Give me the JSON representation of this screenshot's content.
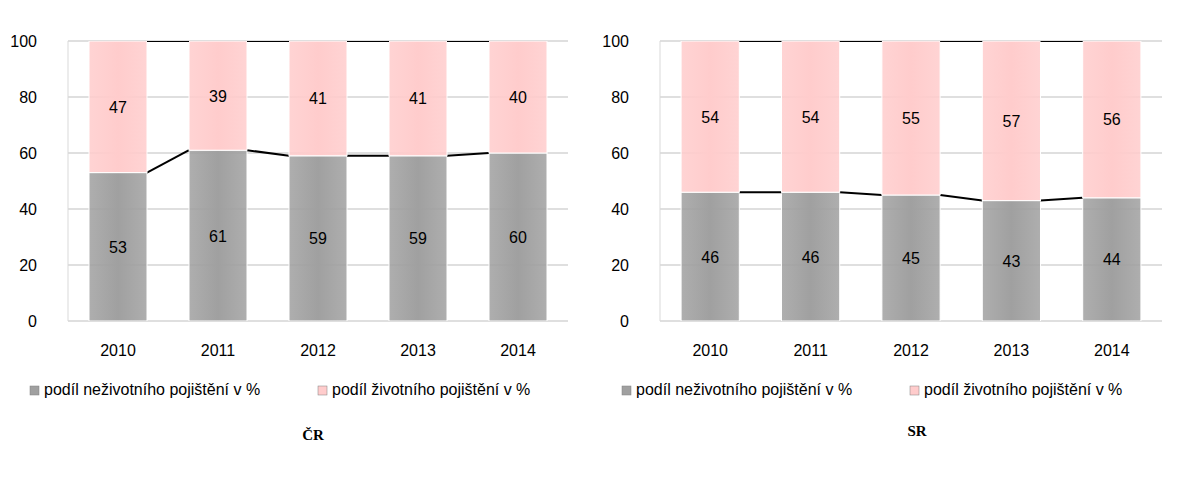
{
  "chart_data": [
    {
      "type": "bar",
      "title": "ČR",
      "stacked": true,
      "data_labels": true,
      "grid": true,
      "legend": "bottom",
      "categories": [
        "2010",
        "2011",
        "2012",
        "2013",
        "2014"
      ],
      "series": [
        {
          "name": "podíl neživotního pojištění v %",
          "color": "#a0a0a0",
          "values": [
            53,
            61,
            59,
            59,
            60
          ]
        },
        {
          "name": "podíl životního pojištění v %",
          "color": "#ffcccc",
          "values": [
            47,
            39,
            41,
            41,
            40
          ]
        }
      ],
      "ylim": [
        0,
        100
      ],
      "yticks": [
        0,
        20,
        40,
        60,
        80,
        100
      ]
    },
    {
      "type": "bar",
      "title": "SR",
      "stacked": true,
      "data_labels": true,
      "grid": true,
      "legend": "bottom",
      "categories": [
        "2010",
        "2011",
        "2012",
        "2013",
        "2014"
      ],
      "series": [
        {
          "name": "podíl neživotního pojištění v %",
          "color": "#a0a0a0",
          "values": [
            46,
            46,
            45,
            43,
            44
          ]
        },
        {
          "name": "podíl životního pojištění v %",
          "color": "#ffcccc",
          "values": [
            54,
            54,
            55,
            57,
            56
          ]
        }
      ],
      "ylim": [
        0,
        100
      ],
      "yticks": [
        0,
        20,
        40,
        60,
        80,
        100
      ]
    }
  ]
}
